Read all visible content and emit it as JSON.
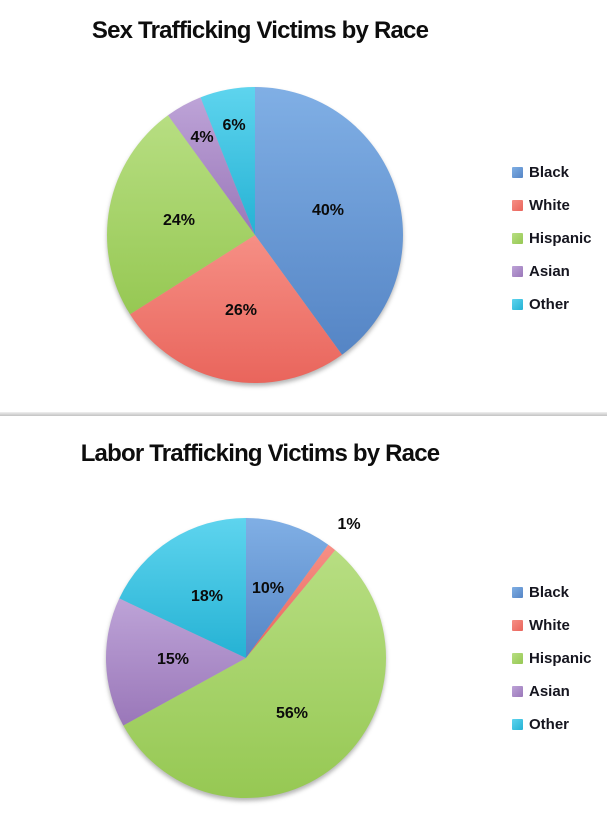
{
  "page": {
    "background": "#FFFFFF",
    "divider_color": "#C2C2C2",
    "text_color": "#0D0D0D"
  },
  "palette": {
    "Black": {
      "base": "#6D9FD9",
      "light": "#80AFE5",
      "dark": "#5585C5"
    },
    "White": {
      "base": "#F17B72",
      "light": "#F68F85",
      "dark": "#E9655C"
    },
    "Hispanic": {
      "base": "#A7D46B",
      "light": "#B7DE82",
      "dark": "#96C853"
    },
    "Asian": {
      "base": "#AD8CC9",
      "light": "#BDA3D7",
      "dark": "#9A77B9"
    },
    "Other": {
      "base": "#3EC5E2",
      "light": "#5ED4EE",
      "dark": "#25B2D4"
    }
  },
  "chart_data": [
    {
      "type": "pie",
      "title": "Sex Trafficking Victims by Race",
      "categories": [
        "Black",
        "White",
        "Hispanic",
        "Asian",
        "Other"
      ],
      "values": [
        40,
        26,
        24,
        4,
        6
      ],
      "data_labels": [
        "40%",
        "26%",
        "24%",
        "4%",
        "6%"
      ],
      "legend_position": "right",
      "legend": [
        "Black",
        "White",
        "Hispanic",
        "Asian",
        "Other"
      ],
      "start_angle_deg": 0,
      "direction": "clockwise"
    },
    {
      "type": "pie",
      "title": "Labor Trafficking Victims by Race",
      "categories": [
        "Black",
        "White",
        "Hispanic",
        "Asian",
        "Other"
      ],
      "values": [
        10,
        1,
        56,
        15,
        18
      ],
      "data_labels": [
        "10%",
        "1%",
        "56%",
        "15%",
        "18%"
      ],
      "legend_position": "right",
      "legend": [
        "Black",
        "White",
        "Hispanic",
        "Asian",
        "Other"
      ],
      "start_angle_deg": 0,
      "direction": "clockwise"
    }
  ]
}
